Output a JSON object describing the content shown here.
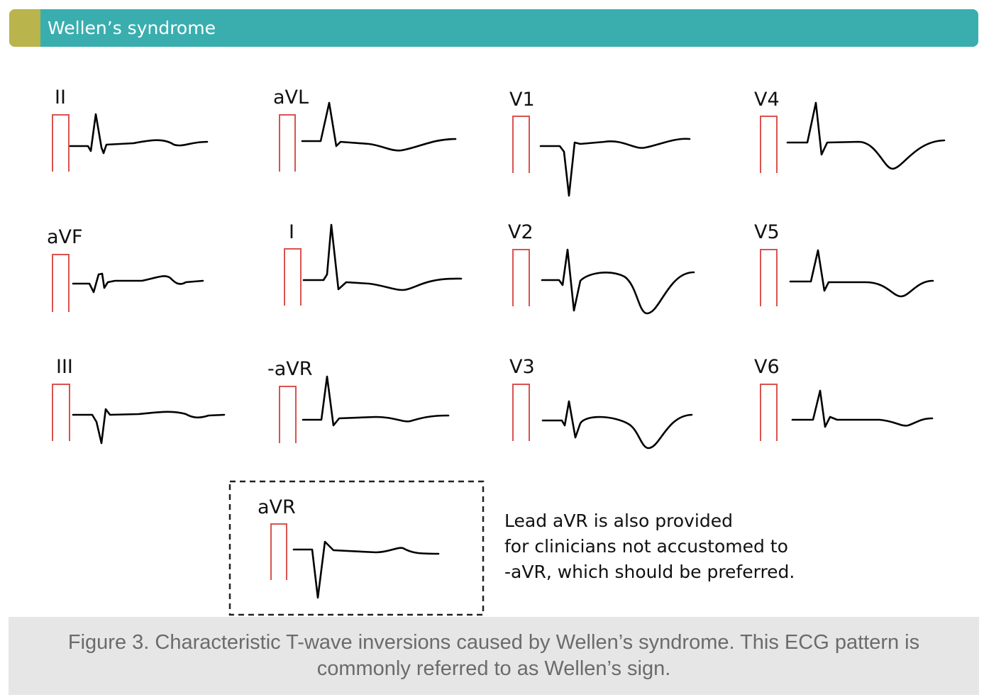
{
  "header": {
    "title": "Wellen’s syndrome",
    "colors": {
      "bar": "#3aaeaf",
      "accent": "#b9b44c"
    }
  },
  "leads": {
    "ii": "II",
    "avl": "aVL",
    "v1": "V1",
    "v4": "V4",
    "avf": "aVF",
    "i": "I",
    "v2": "V2",
    "v5": "V5",
    "iii": "III",
    "neg_avr": "-aVR",
    "v3": "V3",
    "v6": "V6",
    "avr": "aVR"
  },
  "note": {
    "line1": "Lead aVR is also provided",
    "line2": "for clinicians not accustomed to",
    "line3": "-aVR, which should be preferred."
  },
  "caption": {
    "text": "Figure 3. Characteristic T-wave inversions caused by Wellen’s syndrome. This ECG pattern is commonly referred to as Wellen’s sign."
  },
  "colors": {
    "calibration": "#d9534f",
    "trace": "#000000",
    "caption_bg": "#e6e6e6"
  }
}
